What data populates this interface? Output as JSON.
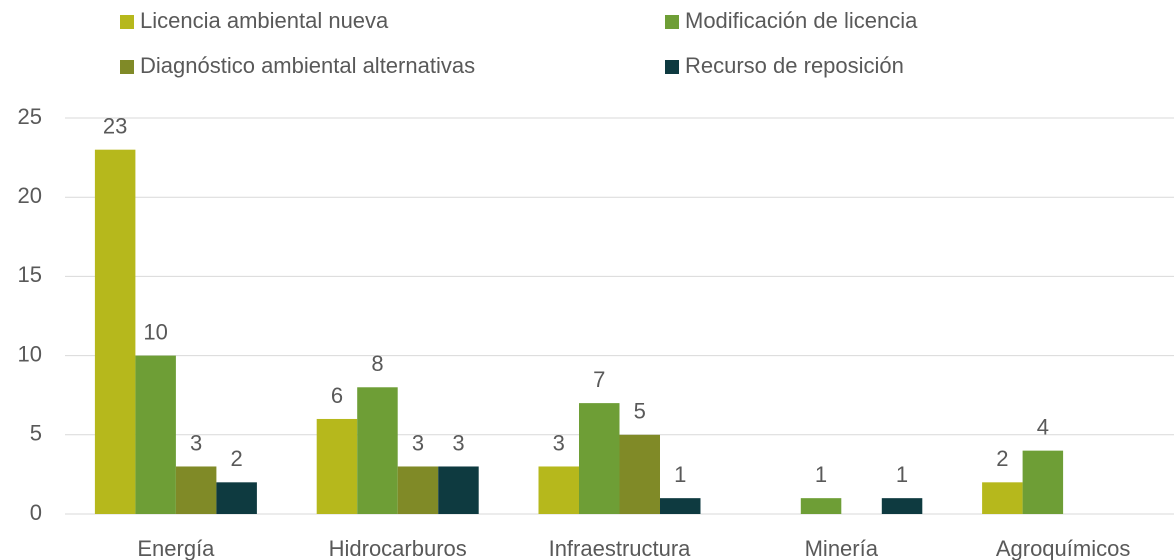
{
  "chart_data": {
    "type": "bar",
    "categories": [
      "Energía",
      "Hidrocarburos",
      "Infraestructura",
      "Minería",
      "Agroquímicos"
    ],
    "series": [
      {
        "name": "Licencia ambiental nueva",
        "color": "#b6b81c",
        "values": [
          23,
          6,
          3,
          null,
          2
        ]
      },
      {
        "name": "Modificación de licencia",
        "color": "#6e9e36",
        "values": [
          10,
          8,
          7,
          1,
          4
        ]
      },
      {
        "name": "Diagnóstico ambiental alternativas",
        "color": "#808a27",
        "values": [
          3,
          3,
          5,
          null,
          null
        ]
      },
      {
        "name": "Recurso de reposición",
        "color": "#0e3a40",
        "values": [
          2,
          3,
          1,
          1,
          null
        ]
      }
    ],
    "ylim": [
      0,
      25
    ],
    "yticks": [
      0,
      5,
      10,
      15,
      20,
      25
    ],
    "grid": true,
    "legend": "top"
  }
}
